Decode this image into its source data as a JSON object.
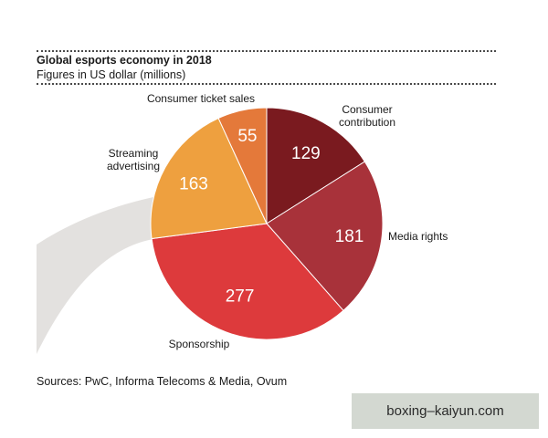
{
  "chart_data": {
    "type": "pie",
    "title": "Global esports economy in 2018",
    "subtitle": "Figures in US dollar (millions)",
    "slices": [
      {
        "label": "Consumer contribution",
        "label_lines": [
          "Consumer",
          "contribution"
        ],
        "value": 129,
        "color": "#7a1a1f"
      },
      {
        "label": "Media rights",
        "label_lines": [
          "Media rights"
        ],
        "value": 181,
        "color": "#a8323a"
      },
      {
        "label": "Sponsorship",
        "label_lines": [
          "Sponsorship"
        ],
        "value": 277,
        "color": "#dd3a3c"
      },
      {
        "label": "Streaming advertising",
        "label_lines": [
          "Streaming",
          "advertising"
        ],
        "value": 163,
        "color": "#eea03f"
      },
      {
        "label": "Consumer ticket sales",
        "label_lines": [
          "Consumer ticket sales"
        ],
        "value": 55,
        "color": "#e4793a"
      }
    ],
    "source": "Sources: PwC, Informa Telecoms & Media, Ovum"
  },
  "watermark": "boxing–kaiyun.com"
}
